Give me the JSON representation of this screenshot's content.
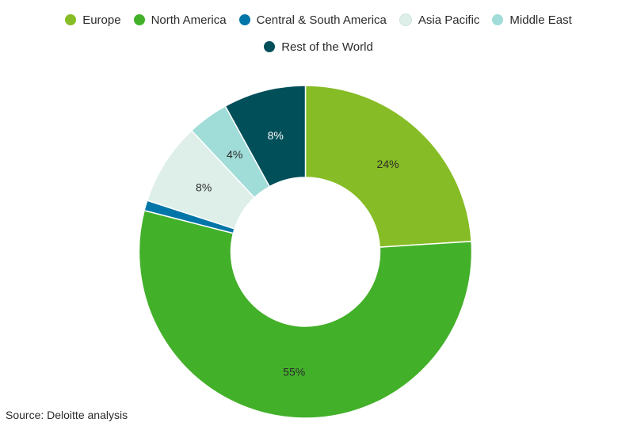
{
  "chart_data": {
    "type": "pie",
    "donut": true,
    "title": "",
    "categories": [
      "Europe",
      "North America",
      "Central & South America",
      "Asia Pacific",
      "Middle East",
      "Rest of the World"
    ],
    "values": [
      24,
      55,
      1,
      8,
      4,
      8
    ],
    "data_labels": [
      "24%",
      "55%",
      "",
      "8%",
      "4%",
      "8%"
    ],
    "colors": [
      "#86bc25",
      "#43b02a",
      "#0076a8",
      "#ddefe8",
      "#a0dcd8",
      "#004f59"
    ],
    "legend_position": "top-center"
  },
  "source": "Source: Deloitte analysis"
}
